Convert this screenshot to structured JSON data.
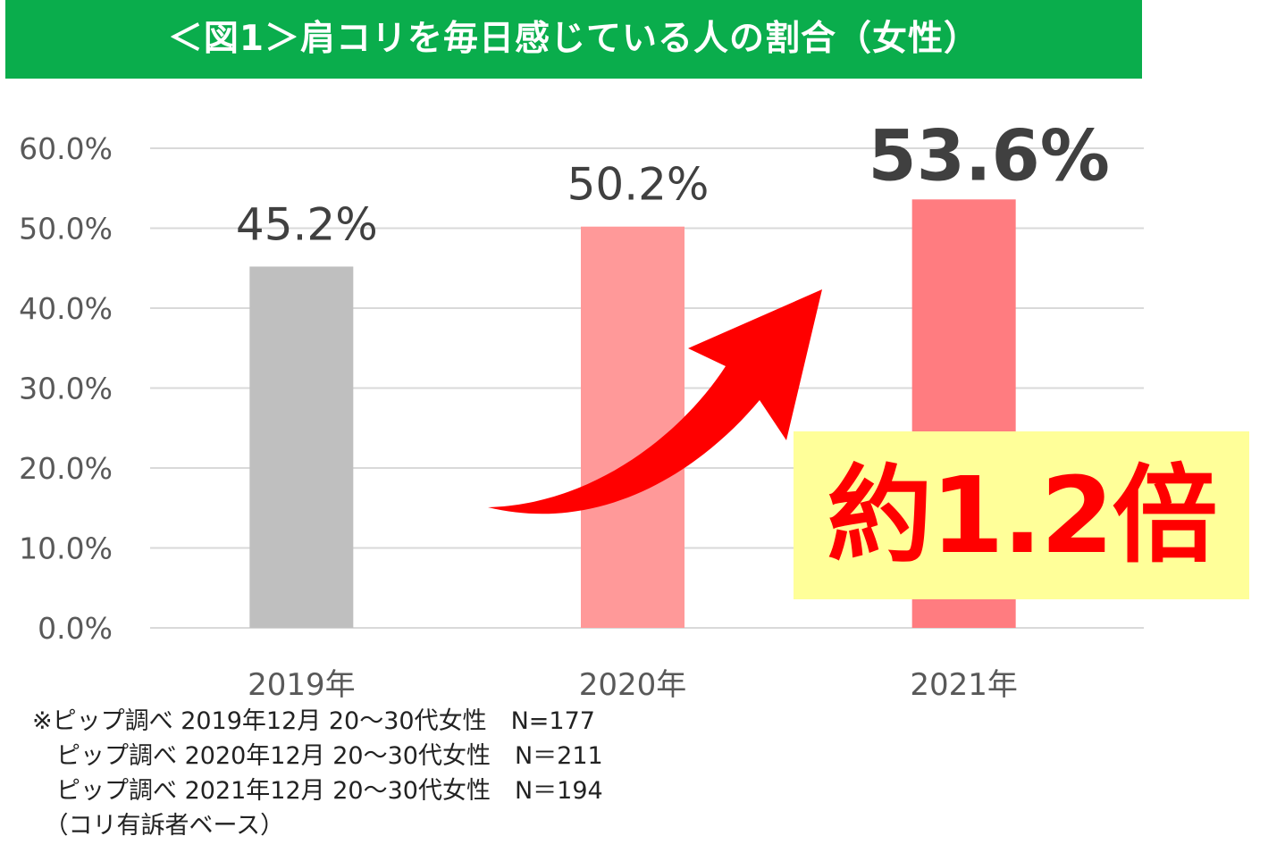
{
  "title": "＜図1＞肩コリを毎日感じている人の割合（女性）",
  "callout": "約1.2倍",
  "notes": [
    "※ピップ調べ 2019年12月 20～30代女性　N=177",
    "　ピップ調べ 2020年12月 20～30代女性　N＝211",
    "　ピップ調べ 2021年12月 20～30代女性　N＝194",
    "　（コリ有訴者ベース）"
  ],
  "colors": {
    "title_bg": "#0aad4c",
    "arrow": "#ff0000",
    "callout_bg": "#ffff99"
  },
  "chart_data": {
    "type": "bar",
    "categories": [
      "2019年",
      "2020年",
      "2021年"
    ],
    "values": [
      45.2,
      50.2,
      53.6
    ],
    "data_labels": [
      "45.2%",
      "50.2%",
      "53.6%"
    ],
    "bar_colors": [
      "#bfbfbf",
      "#ff9999",
      "#ff7c80"
    ],
    "yticks": [
      "0.0%",
      "10.0%",
      "20.0%",
      "30.0%",
      "40.0%",
      "50.0%",
      "60.0%"
    ],
    "ylim": [
      0,
      60
    ],
    "grid": true,
    "legend": "none"
  }
}
